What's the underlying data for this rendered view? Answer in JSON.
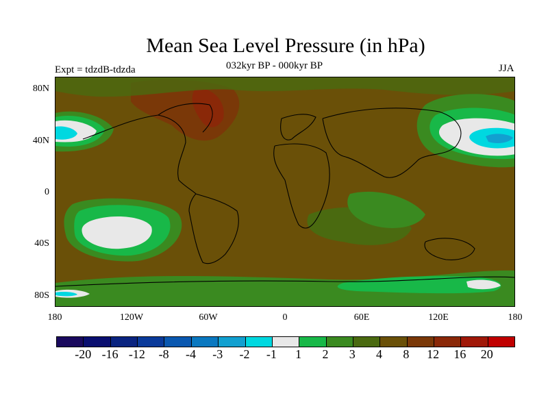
{
  "title": "Mean Sea Level Pressure (in hPa)",
  "subtitle": "032kyr BP - 000kyr BP",
  "experiment": "Expt = tdzdB-tdzda",
  "season": "JJA",
  "lat_labels": [
    "80N",
    "40N",
    "0",
    "40S",
    "80S"
  ],
  "lon_labels": [
    "180",
    "120W",
    "60W",
    "0",
    "60E",
    "120E",
    "180"
  ],
  "colorbar": {
    "colors": [
      "#1a0a5e",
      "#0a0f70",
      "#0a2480",
      "#0a3a9a",
      "#0a58b0",
      "#0a78c0",
      "#12a0d0",
      "#00d8e0",
      "#e8e8e8",
      "#18b848",
      "#3a8a20",
      "#4a6a10",
      "#6a5008",
      "#7a3808",
      "#8a2808",
      "#a01808",
      "#c00000"
    ],
    "labels": [
      "-20",
      "-16",
      "-12",
      "-8",
      "-4",
      "-3",
      "-2",
      "-1",
      "1",
      "2",
      "3",
      "4",
      "8",
      "12",
      "16",
      "20"
    ]
  }
}
